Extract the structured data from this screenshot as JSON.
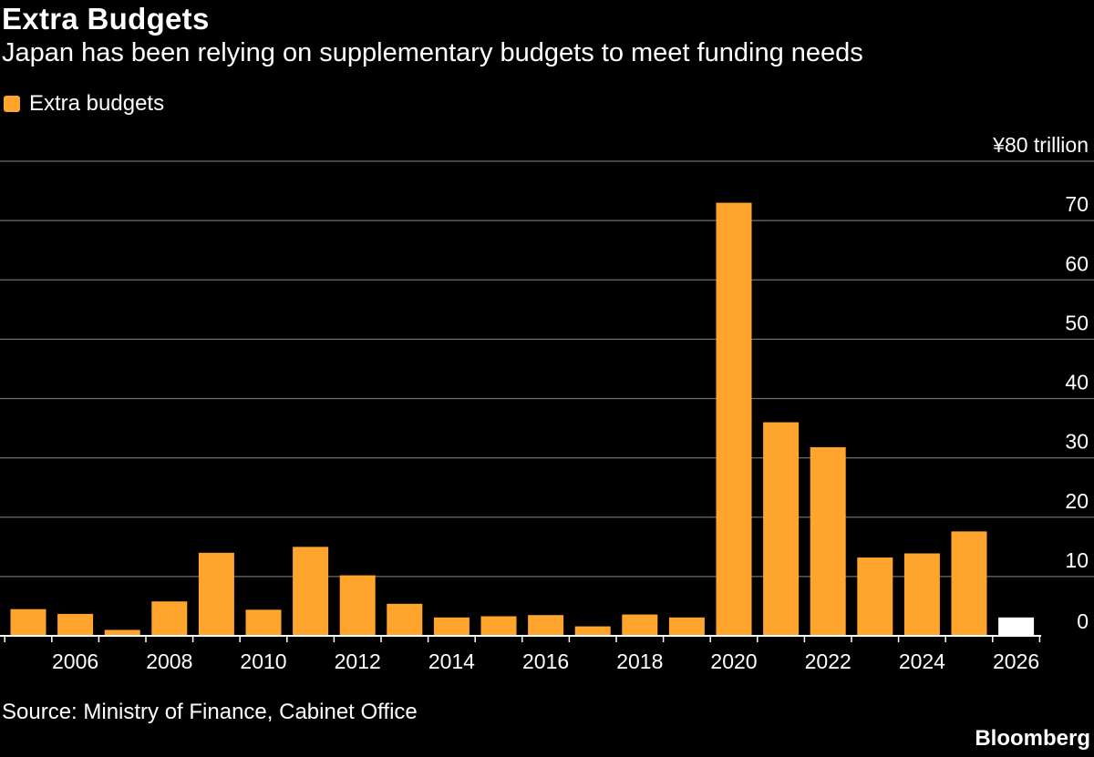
{
  "header": {
    "title": "Extra Budgets",
    "subtitle": "Japan has been relying on supplementary budgets to meet funding needs"
  },
  "legend": {
    "label": "Extra budgets",
    "color": "#ffa42c"
  },
  "footer": {
    "source": "Source: Ministry of Finance, Cabinet Office",
    "brand": "Bloomberg"
  },
  "chart_data": {
    "type": "bar",
    "title": "Extra Budgets",
    "subtitle": "Japan has been relying on supplementary budgets to meet funding needs",
    "series": [
      {
        "name": "Extra budgets",
        "color": "#ffa42c",
        "highlight_color": "#ffffff",
        "highlight_category": "2026",
        "values": [
          4.5,
          3.7,
          1.0,
          5.8,
          14.0,
          4.4,
          15.0,
          10.2,
          5.4,
          3.1,
          3.3,
          3.5,
          1.6,
          3.6,
          3.1,
          73.0,
          36.0,
          31.8,
          13.2,
          13.9,
          17.6,
          3.1
        ]
      }
    ],
    "categories": [
      "2005",
      "2006",
      "2007",
      "2008",
      "2009",
      "2010",
      "2011",
      "2012",
      "2013",
      "2014",
      "2015",
      "2016",
      "2017",
      "2018",
      "2019",
      "2020",
      "2021",
      "2022",
      "2023",
      "2024",
      "2025",
      "2026"
    ],
    "x_tick_labels": [
      "2006",
      "2008",
      "2010",
      "2012",
      "2014",
      "2016",
      "2018",
      "2020",
      "2022",
      "2024",
      "2026"
    ],
    "y_ticks": [
      0,
      10,
      20,
      30,
      40,
      50,
      60,
      70,
      80
    ],
    "y_tick_labels": [
      "0",
      "10",
      "20",
      "30",
      "40",
      "50",
      "60",
      "70",
      "¥80 trillion"
    ],
    "ylim": [
      0,
      80
    ],
    "grid": true,
    "legend_position": "top-left",
    "xlabel": "",
    "ylabel": ""
  }
}
